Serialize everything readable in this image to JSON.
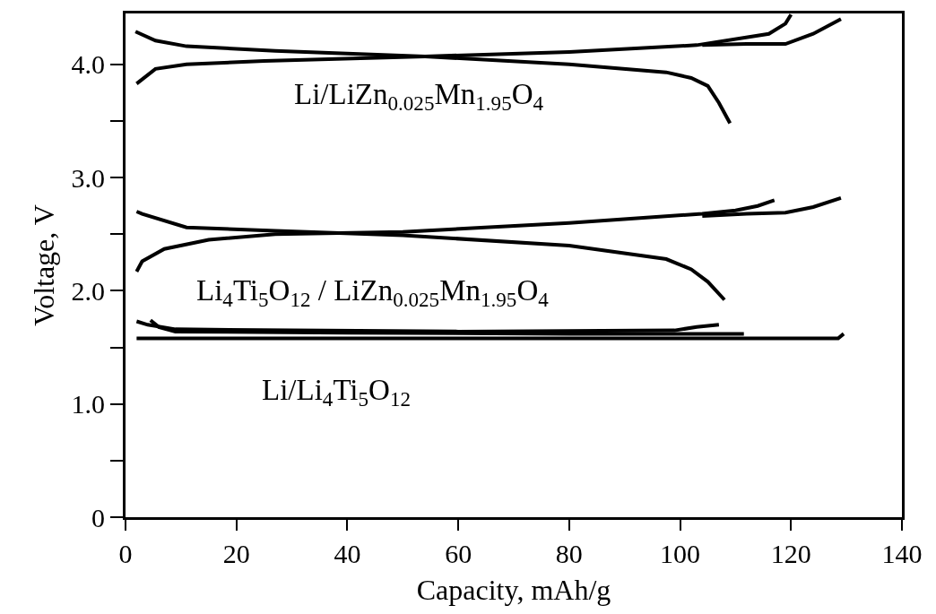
{
  "chart_data": {
    "type": "line",
    "xlabel": "Capacity, mAh/g",
    "ylabel": "Voltage, V",
    "xlim": [
      0,
      140
    ],
    "xticks": [
      0,
      20,
      40,
      60,
      80,
      100,
      120,
      140
    ],
    "ylim": [
      0,
      4.45
    ],
    "yticks": [
      {
        "value": 0,
        "label": "0"
      },
      {
        "value": 0.5,
        "label": null
      },
      {
        "value": 1,
        "label": "1.0"
      },
      {
        "value": 1.5,
        "label": null
      },
      {
        "value": 2,
        "label": "2.0"
      },
      {
        "value": 2.5,
        "label": null
      },
      {
        "value": 3,
        "label": "3.0"
      },
      {
        "value": 3.5,
        "label": null
      },
      {
        "value": 4,
        "label": "4.0"
      }
    ],
    "grid": false,
    "marker": "none",
    "line_style": "solid",
    "series": [
      {
        "color": "#000000",
        "x": [
          2,
          5.4,
          11,
          25,
          54,
          80,
          103,
          116,
          119,
          120
        ],
        "values": [
          3.83,
          3.96,
          4.0,
          4.03,
          4.07,
          4.11,
          4.17,
          4.27,
          4.36,
          4.44
        ]
      },
      {
        "color": "#000000",
        "x": [
          104,
          112,
          119,
          124,
          129
        ],
        "values": [
          4.17,
          4.18,
          4.18,
          4.27,
          4.4
        ]
      },
      {
        "color": "#000000",
        "x": [
          1.8,
          5.4,
          11,
          27,
          54,
          80,
          97.5,
          102,
          105,
          107,
          109
        ],
        "values": [
          4.29,
          4.21,
          4.16,
          4.12,
          4.07,
          4.0,
          3.93,
          3.88,
          3.81,
          3.66,
          3.48
        ]
      },
      {
        "color": "#000000",
        "x": [
          2,
          3,
          7,
          15,
          27,
          50,
          80,
          104,
          110,
          114,
          117
        ],
        "values": [
          2.17,
          2.26,
          2.37,
          2.45,
          2.5,
          2.52,
          2.6,
          2.68,
          2.71,
          2.75,
          2.8
        ]
      },
      {
        "color": "#000000",
        "x": [
          104,
          112,
          119,
          124,
          129
        ],
        "values": [
          2.66,
          2.68,
          2.69,
          2.74,
          2.82
        ]
      },
      {
        "color": "#000000",
        "x": [
          2,
          3,
          11,
          27,
          50,
          80,
          97.5,
          102,
          105,
          108
        ],
        "values": [
          2.7,
          2.68,
          2.56,
          2.53,
          2.49,
          2.4,
          2.28,
          2.19,
          2.08,
          1.92
        ]
      },
      {
        "color": "#000000",
        "x": [
          2,
          4,
          9,
          30,
          60,
          99,
          103,
          107
        ],
        "values": [
          1.73,
          1.7,
          1.66,
          1.65,
          1.64,
          1.65,
          1.68,
          1.7
        ]
      },
      {
        "color": "#000000",
        "x": [
          4.5,
          6,
          9,
          40,
          80,
          111.5
        ],
        "values": [
          1.74,
          1.68,
          1.64,
          1.63,
          1.62,
          1.62
        ]
      },
      {
        "color": "#000000",
        "x": [
          2,
          40,
          80,
          128.5,
          129.5
        ],
        "values": [
          1.58,
          1.58,
          1.58,
          1.58,
          1.62
        ]
      }
    ],
    "annotations": [
      "Li/LiZn$_{0.025}$Mn$_{1.95}$O$_{4}$",
      "Li$_{4}$Ti$_{5}$O$_{12}$ / LiZn$_{0.025}$Mn$_{1.95}$O$_{4}$",
      "Li/Li$_{4}$Ti$_{5}$O$_{12}$"
    ]
  }
}
